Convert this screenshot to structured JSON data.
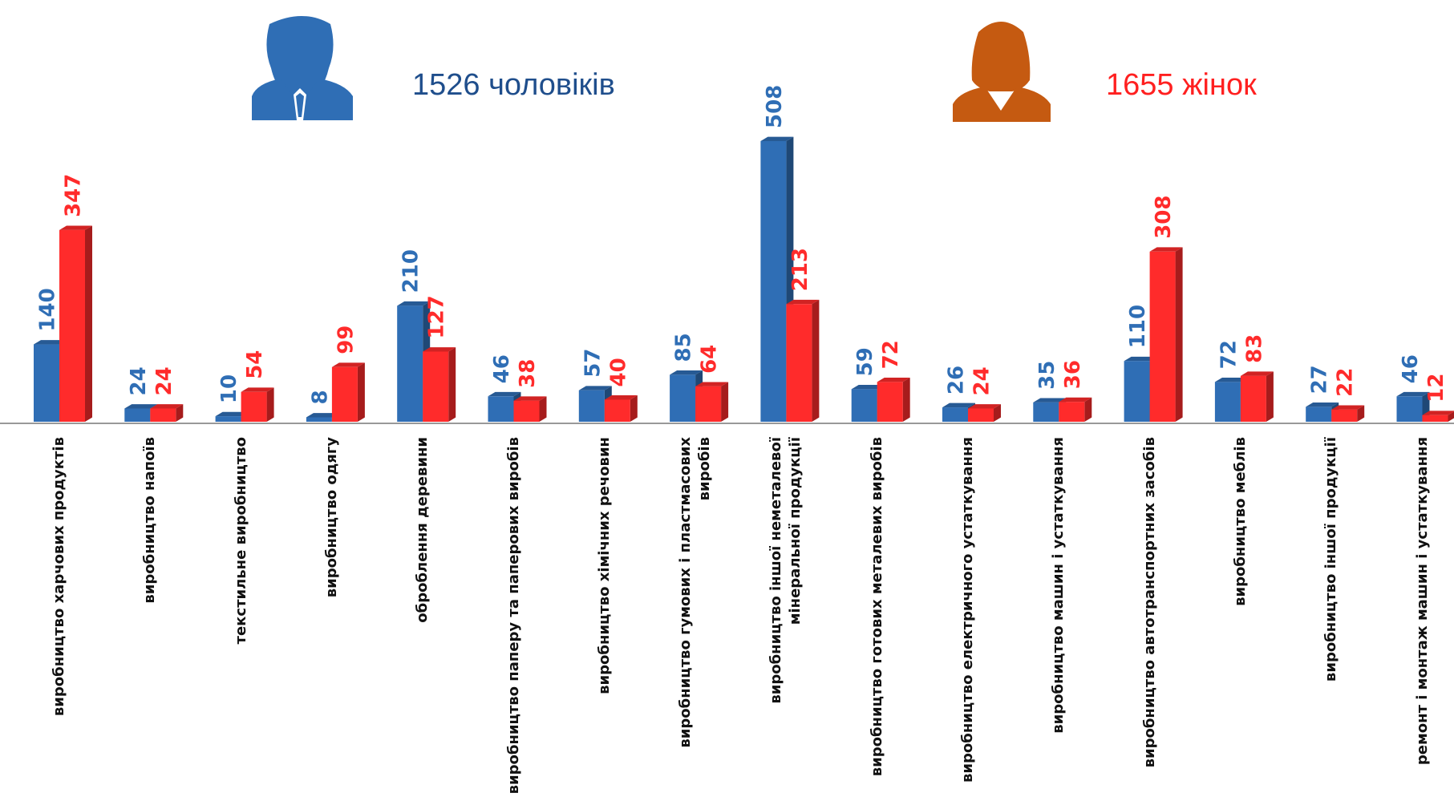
{
  "chart_data": {
    "type": "bar",
    "annotations": [
      "1526 чоловіків",
      "1655 жінок"
    ],
    "categories": [
      "виробництво харчових продуктів",
      "виробництво напоїв",
      "текстильне  виробництво",
      "виробництво одягу",
      "оброблення деревини",
      "виробництво паперу та паперових виробів",
      "виробництво хімічних речовин",
      "виробництво гумових і пластмасових виробів",
      "виробництво іншої неметалевої мінеральної продукції",
      "виробництво готових металевих виробів",
      "виробництво електричного устаткування",
      "виробництво машин і устаткування",
      "виробництво автотранспортних засобів",
      "виробництво меблів",
      "виробництво іншої продукції",
      "ремонт і монтаж машин і устаткування"
    ],
    "series": [
      {
        "color": "#2f6eb5",
        "values": [
          140,
          24,
          10,
          8,
          210,
          46,
          57,
          85,
          508,
          59,
          26,
          35,
          110,
          72,
          27,
          46
        ]
      },
      {
        "color": "#ff2b2b",
        "values": [
          347,
          24,
          54,
          99,
          127,
          38,
          40,
          64,
          213,
          72,
          24,
          36,
          308,
          83,
          22,
          12
        ]
      }
    ]
  }
}
